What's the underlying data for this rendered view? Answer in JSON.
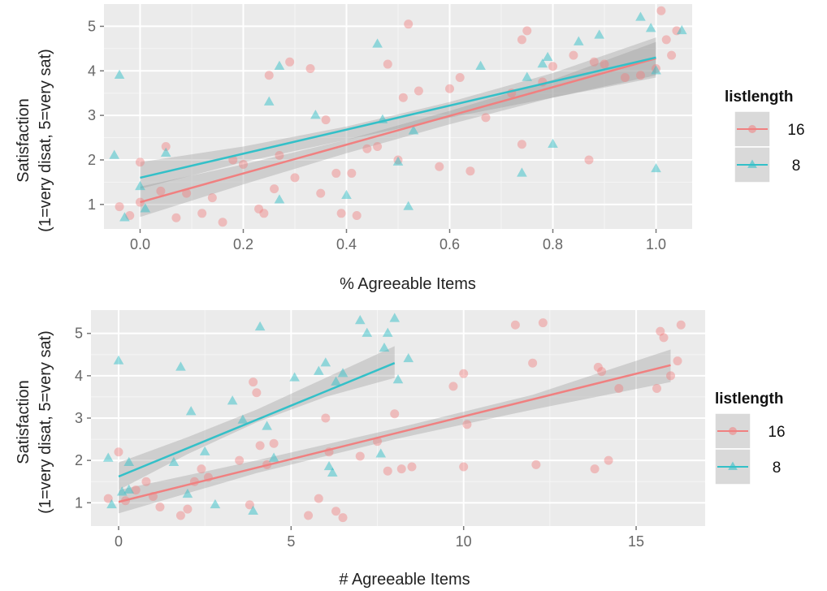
{
  "colors": {
    "panel_bg": "#ebebeb",
    "grid_major": "#ffffff",
    "series_16": "#f08080",
    "series_8": "#33c0c8",
    "band": "#999999"
  },
  "chart_data": [
    {
      "type": "scatter",
      "xlabel": "% Agreeable Items",
      "ylabel_line1": "Satisfaction",
      "ylabel_line2": "(1=very disat, 5=very sat)",
      "xlim": [
        -0.07,
        1.07
      ],
      "ylim": [
        0.45,
        5.5
      ],
      "xticks": [
        0.0,
        0.2,
        0.4,
        0.6,
        0.8,
        1.0
      ],
      "xtick_labels": [
        "0.0",
        "0.2",
        "0.4",
        "0.6",
        "0.8",
        "1.0"
      ],
      "yticks": [
        1,
        2,
        3,
        4,
        5
      ],
      "ytick_labels": [
        "1",
        "2",
        "3",
        "4",
        "5"
      ],
      "grid": true,
      "legend_position": "right",
      "legend_title": "listlength",
      "series": [
        {
          "name": "16",
          "marker": "circle",
          "fit": {
            "x0": 0.0,
            "y0": 1.05,
            "x1": 1.0,
            "y1": 4.28
          },
          "band": [
            [
              0.0,
              0.72,
              1.4
            ],
            [
              0.2,
              1.45,
              1.9
            ],
            [
              0.4,
              2.15,
              2.45
            ],
            [
              0.6,
              2.8,
              3.1
            ],
            [
              0.8,
              3.4,
              3.8
            ],
            [
              1.0,
              3.9,
              4.65
            ]
          ],
          "points": [
            [
              -0.04,
              0.95
            ],
            [
              -0.02,
              0.75
            ],
            [
              0.0,
              1.05
            ],
            [
              0.0,
              1.95
            ],
            [
              0.04,
              1.3
            ],
            [
              0.05,
              2.3
            ],
            [
              0.07,
              0.7
            ],
            [
              0.09,
              1.25
            ],
            [
              0.12,
              0.8
            ],
            [
              0.14,
              1.15
            ],
            [
              0.16,
              0.6
            ],
            [
              0.18,
              2.0
            ],
            [
              0.2,
              1.9
            ],
            [
              0.23,
              0.9
            ],
            [
              0.24,
              0.8
            ],
            [
              0.25,
              3.9
            ],
            [
              0.26,
              1.35
            ],
            [
              0.27,
              2.1
            ],
            [
              0.29,
              4.2
            ],
            [
              0.3,
              1.6
            ],
            [
              0.33,
              4.05
            ],
            [
              0.35,
              1.25
            ],
            [
              0.36,
              2.9
            ],
            [
              0.38,
              1.7
            ],
            [
              0.39,
              0.8
            ],
            [
              0.41,
              1.7
            ],
            [
              0.42,
              0.75
            ],
            [
              0.44,
              2.25
            ],
            [
              0.46,
              2.3
            ],
            [
              0.48,
              4.15
            ],
            [
              0.5,
              2.0
            ],
            [
              0.51,
              3.4
            ],
            [
              0.52,
              5.05
            ],
            [
              0.54,
              3.55
            ],
            [
              0.58,
              1.85
            ],
            [
              0.6,
              3.6
            ],
            [
              0.62,
              3.85
            ],
            [
              0.64,
              1.75
            ],
            [
              0.67,
              2.95
            ],
            [
              0.72,
              3.5
            ],
            [
              0.74,
              2.35
            ],
            [
              0.74,
              4.7
            ],
            [
              0.75,
              4.9
            ],
            [
              0.78,
              3.75
            ],
            [
              0.8,
              4.1
            ],
            [
              0.84,
              4.35
            ],
            [
              0.87,
              2.0
            ],
            [
              0.88,
              4.2
            ],
            [
              0.9,
              4.15
            ],
            [
              0.94,
              3.85
            ],
            [
              0.97,
              3.9
            ],
            [
              1.0,
              4.05
            ],
            [
              1.01,
              5.35
            ],
            [
              1.02,
              4.7
            ],
            [
              1.03,
              4.35
            ],
            [
              1.04,
              4.9
            ]
          ]
        },
        {
          "name": "8",
          "marker": "triangle",
          "fit": {
            "x0": 0.0,
            "y0": 1.6,
            "x1": 1.0,
            "y1": 4.3
          },
          "band": [
            [
              0.0,
              1.35,
              1.95
            ],
            [
              0.2,
              1.95,
              2.3
            ],
            [
              0.4,
              2.45,
              2.75
            ],
            [
              0.6,
              2.95,
              3.3
            ],
            [
              0.8,
              3.4,
              3.95
            ],
            [
              1.0,
              3.85,
              4.75
            ]
          ],
          "points": [
            [
              -0.05,
              2.1
            ],
            [
              -0.04,
              3.9
            ],
            [
              -0.03,
              0.7
            ],
            [
              0.0,
              1.4
            ],
            [
              0.01,
              0.9
            ],
            [
              0.05,
              2.15
            ],
            [
              0.25,
              3.3
            ],
            [
              0.27,
              4.1
            ],
            [
              0.27,
              1.1
            ],
            [
              0.34,
              3.0
            ],
            [
              0.4,
              1.2
            ],
            [
              0.46,
              4.6
            ],
            [
              0.47,
              2.9
            ],
            [
              0.5,
              1.95
            ],
            [
              0.52,
              0.95
            ],
            [
              0.53,
              2.65
            ],
            [
              0.66,
              4.1
            ],
            [
              0.74,
              1.7
            ],
            [
              0.75,
              3.85
            ],
            [
              0.78,
              4.15
            ],
            [
              0.79,
              4.3
            ],
            [
              0.8,
              2.35
            ],
            [
              0.85,
              4.65
            ],
            [
              0.89,
              4.8
            ],
            [
              0.97,
              5.2
            ],
            [
              0.99,
              4.95
            ],
            [
              1.0,
              4.0
            ],
            [
              1.0,
              1.8
            ],
            [
              1.05,
              4.9
            ]
          ]
        }
      ]
    },
    {
      "type": "scatter",
      "xlabel": "# Agreeable Items",
      "ylabel_line1": "Satisfaction",
      "ylabel_line2": "(1=very disat, 5=very sat)",
      "xlim": [
        -0.8,
        17.0
      ],
      "ylim": [
        0.45,
        5.55
      ],
      "xticks": [
        0,
        5,
        10,
        15
      ],
      "xtick_labels": [
        "0",
        "5",
        "10",
        "15"
      ],
      "yticks": [
        1,
        2,
        3,
        4,
        5
      ],
      "ytick_labels": [
        "1",
        "2",
        "3",
        "4",
        "5"
      ],
      "grid": true,
      "legend_position": "right",
      "legend_title": "listlength",
      "series": [
        {
          "name": "16",
          "marker": "circle",
          "fit": {
            "x0": 0.0,
            "y0": 1.02,
            "x1": 16.0,
            "y1": 4.25
          },
          "band": [
            [
              0.0,
              0.75,
              1.3
            ],
            [
              4.0,
              1.7,
              2.0
            ],
            [
              8.0,
              2.5,
              2.75
            ],
            [
              12.0,
              3.2,
              3.55
            ],
            [
              16.0,
              3.85,
              4.62
            ]
          ],
          "points": [
            [
              -0.3,
              1.1
            ],
            [
              0.0,
              2.2
            ],
            [
              0.2,
              1.05
            ],
            [
              0.5,
              1.3
            ],
            [
              0.8,
              1.5
            ],
            [
              1.0,
              1.15
            ],
            [
              1.2,
              0.9
            ],
            [
              1.8,
              0.7
            ],
            [
              2.0,
              0.85
            ],
            [
              2.2,
              1.5
            ],
            [
              2.4,
              1.8
            ],
            [
              2.6,
              1.6
            ],
            [
              3.5,
              2.0
            ],
            [
              3.8,
              0.95
            ],
            [
              3.9,
              3.85
            ],
            [
              4.0,
              3.6
            ],
            [
              4.1,
              2.35
            ],
            [
              4.3,
              1.9
            ],
            [
              4.5,
              2.4
            ],
            [
              5.5,
              0.7
            ],
            [
              5.8,
              1.1
            ],
            [
              6.0,
              3.0
            ],
            [
              6.1,
              2.2
            ],
            [
              6.3,
              0.8
            ],
            [
              6.5,
              0.65
            ],
            [
              7.0,
              2.1
            ],
            [
              7.5,
              2.45
            ],
            [
              7.8,
              1.75
            ],
            [
              8.0,
              3.1
            ],
            [
              8.2,
              1.8
            ],
            [
              8.5,
              1.85
            ],
            [
              9.7,
              3.75
            ],
            [
              10.0,
              4.05
            ],
            [
              10.0,
              1.85
            ],
            [
              10.1,
              2.85
            ],
            [
              11.5,
              5.2
            ],
            [
              12.0,
              4.3
            ],
            [
              12.1,
              1.9
            ],
            [
              12.3,
              5.25
            ],
            [
              13.8,
              1.8
            ],
            [
              13.9,
              4.2
            ],
            [
              14.0,
              4.1
            ],
            [
              14.2,
              2.0
            ],
            [
              14.5,
              3.7
            ],
            [
              15.6,
              3.7
            ],
            [
              15.7,
              5.05
            ],
            [
              15.8,
              4.9
            ],
            [
              16.0,
              4.0
            ],
            [
              16.2,
              4.35
            ],
            [
              16.3,
              5.2
            ]
          ]
        },
        {
          "name": "8",
          "marker": "triangle",
          "fit": {
            "x0": 0.0,
            "y0": 1.62,
            "x1": 8.0,
            "y1": 4.3
          },
          "band": [
            [
              0.0,
              1.3,
              1.95
            ],
            [
              2.0,
              2.15,
              2.55
            ],
            [
              4.0,
              2.9,
              3.2
            ],
            [
              6.0,
              3.5,
              3.95
            ],
            [
              8.0,
              3.95,
              4.7
            ]
          ],
          "points": [
            [
              -0.3,
              2.05
            ],
            [
              -0.2,
              0.95
            ],
            [
              0.0,
              4.35
            ],
            [
              0.1,
              1.25
            ],
            [
              0.3,
              1.95
            ],
            [
              0.3,
              1.3
            ],
            [
              1.6,
              1.95
            ],
            [
              1.8,
              4.2
            ],
            [
              2.0,
              1.2
            ],
            [
              2.1,
              3.15
            ],
            [
              2.5,
              2.2
            ],
            [
              2.8,
              0.95
            ],
            [
              3.3,
              3.4
            ],
            [
              3.6,
              2.95
            ],
            [
              3.9,
              0.8
            ],
            [
              4.1,
              5.15
            ],
            [
              4.3,
              2.8
            ],
            [
              4.5,
              2.05
            ],
            [
              5.1,
              3.95
            ],
            [
              5.8,
              4.1
            ],
            [
              6.0,
              4.3
            ],
            [
              6.1,
              1.85
            ],
            [
              6.2,
              1.7
            ],
            [
              6.3,
              3.85
            ],
            [
              6.5,
              4.05
            ],
            [
              7.0,
              5.3
            ],
            [
              7.2,
              5.0
            ],
            [
              7.6,
              2.15
            ],
            [
              7.7,
              4.65
            ],
            [
              7.8,
              5.0
            ],
            [
              8.0,
              5.35
            ],
            [
              8.1,
              3.9
            ],
            [
              8.4,
              4.4
            ]
          ]
        }
      ]
    }
  ]
}
